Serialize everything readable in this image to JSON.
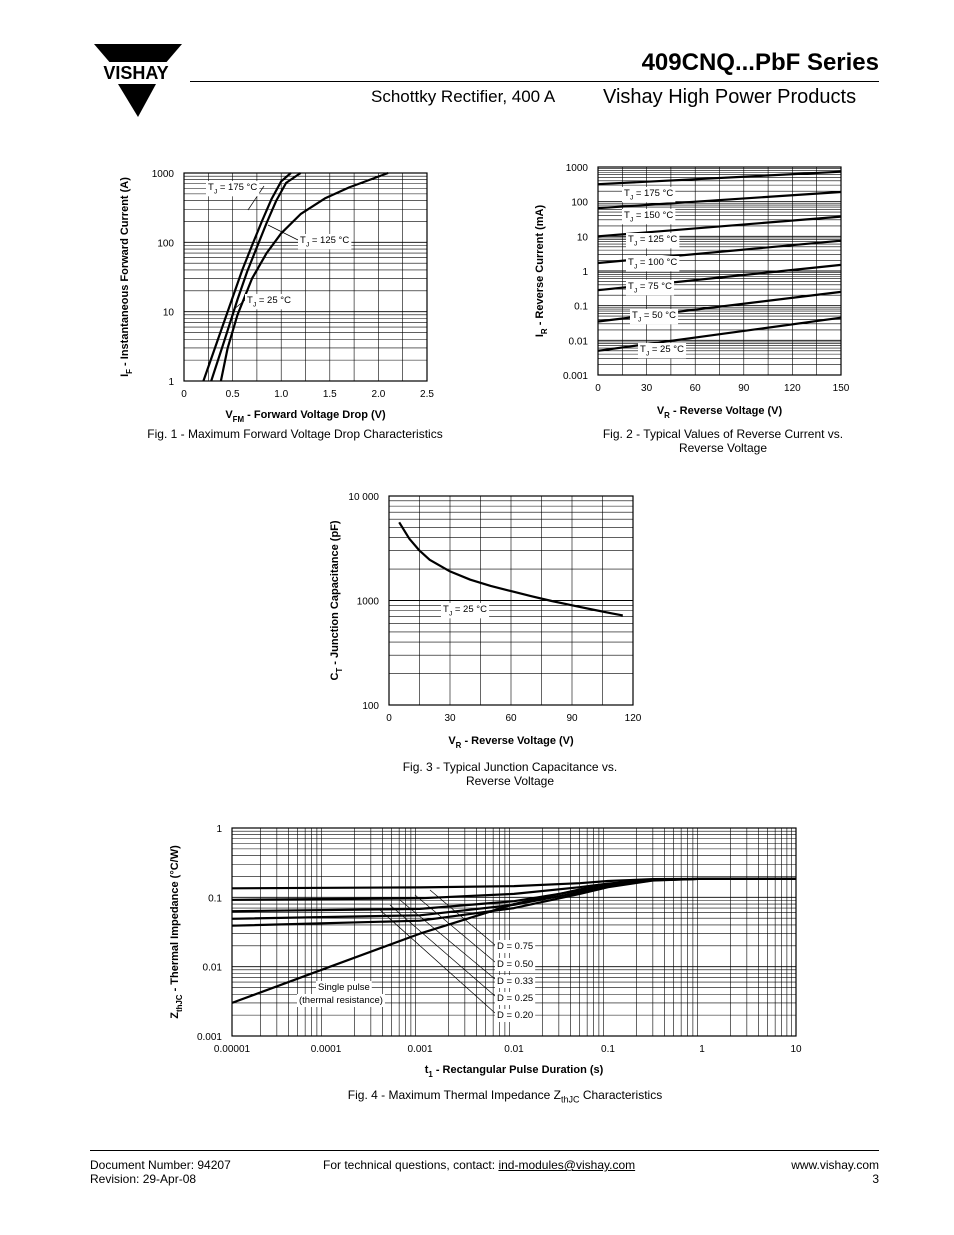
{
  "header": {
    "logo_text": "VISHAY",
    "title": "409CNQ...PbF Series",
    "subtitle": "Schottky Rectifier, 400 A",
    "brand": "Vishay High Power Products"
  },
  "figures": [
    {
      "caption": "Fig. 1 - Maximum Forward Voltage Drop Characteristics"
    },
    {
      "caption": "Fig. 2 - Typical Values of Reverse Current vs. Reverse Voltage"
    },
    {
      "caption": "Fig. 3 - Typical Junction Capacitance vs. Reverse Voltage"
    },
    {
      "caption_prefix": "Fig. 4 - Maximum Thermal Impedance Z",
      "caption_sub": "thJC",
      "caption_suffix": " Characteristics"
    }
  ],
  "footer": {
    "doc_number": "Document Number: 94207",
    "revision": "Revision: 29-Apr-08",
    "contact_prefix": "For technical questions, contact: ",
    "contact_email": "ind-modules@vishay.com",
    "website": "www.vishay.com",
    "page_number": "3"
  },
  "chart_data": [
    {
      "type": "line",
      "title": "Fig. 1 - Maximum Forward Voltage Drop Characteristics",
      "ylabel_main": "I",
      "ylabel_sub": "F",
      "ylabel_rest": " - Instantaneous Forward Current (A)",
      "xlabel_main": "V",
      "xlabel_sub": "FM",
      "xlabel_rest": " - Forward Voltage Drop (V)",
      "xlim": [
        0,
        2.5
      ],
      "ylim": [
        1,
        1000
      ],
      "yscale": "log",
      "xticks": [
        "0",
        "0.5",
        "1.0",
        "1.5",
        "2.0",
        "2.5"
      ],
      "yticks": [
        "1",
        "10",
        "100",
        "1000"
      ],
      "grid": true,
      "series": [
        {
          "name": "T_J = 175 °C",
          "points": [
            [
              0.2,
              1
            ],
            [
              0.35,
              4
            ],
            [
              0.5,
              16
            ],
            [
              0.6,
              40
            ],
            [
              0.7,
              90
            ],
            [
              0.8,
              200
            ],
            [
              0.9,
              420
            ],
            [
              1.0,
              760
            ],
            [
              1.1,
              1000
            ]
          ]
        },
        {
          "name": "T_J = 125 °C",
          "points": [
            [
              0.28,
              1
            ],
            [
              0.42,
              4
            ],
            [
              0.55,
              15
            ],
            [
              0.65,
              38
            ],
            [
              0.75,
              85
            ],
            [
              0.85,
              190
            ],
            [
              0.95,
              400
            ],
            [
              1.05,
              720
            ],
            [
              1.2,
              1000
            ]
          ]
        },
        {
          "name": "T_J = 25 °C",
          "points": [
            [
              0.38,
              1
            ],
            [
              0.45,
              3
            ],
            [
              0.55,
              9
            ],
            [
              0.7,
              30
            ],
            [
              0.85,
              70
            ],
            [
              1.0,
              135
            ],
            [
              1.2,
              255
            ],
            [
              1.45,
              430
            ],
            [
              1.7,
              620
            ],
            [
              2.1,
              1000
            ]
          ]
        }
      ],
      "annotations": [
        {
          "main": "T",
          "sub": "J",
          "rest": " = 175 °C"
        },
        {
          "main": "T",
          "sub": "J",
          "rest": " = 125 °C"
        },
        {
          "main": "T",
          "sub": "J",
          "rest": " = 25 °C"
        }
      ]
    },
    {
      "type": "line",
      "title": "Fig. 2 - Typical Values of Reverse Current vs. Reverse Voltage",
      "ylabel_main": "I",
      "ylabel_sub": "R",
      "ylabel_rest": " - Reverse Current (mA)",
      "xlabel_main": "V",
      "xlabel_sub": "R",
      "xlabel_rest": " - Reverse Voltage (V)",
      "xlim": [
        0,
        150
      ],
      "ylim": [
        0.001,
        1000
      ],
      "yscale": "log",
      "xticks": [
        "0",
        "30",
        "60",
        "90",
        "120",
        "150"
      ],
      "yticks": [
        "0.001",
        "0.01",
        "0.1",
        "1",
        "10",
        "100",
        "1000"
      ],
      "grid": true,
      "series": [
        {
          "name": "T_J = 175 °C",
          "points": [
            [
              0,
              320
            ],
            [
              150,
              730
            ]
          ]
        },
        {
          "name": "T_J = 150 °C",
          "points": [
            [
              0,
              65
            ],
            [
              150,
              190
            ]
          ]
        },
        {
          "name": "T_J = 125 °C",
          "points": [
            [
              0,
              10
            ],
            [
              150,
              37
            ]
          ]
        },
        {
          "name": "T_J = 100 °C",
          "points": [
            [
              0,
              1.7
            ],
            [
              150,
              7.5
            ]
          ]
        },
        {
          "name": "T_J = 75 °C",
          "points": [
            [
              0,
              0.28
            ],
            [
              150,
              1.5
            ]
          ]
        },
        {
          "name": "T_J = 50 °C",
          "points": [
            [
              0,
              0.035
            ],
            [
              150,
              0.25
            ]
          ]
        },
        {
          "name": "T_J = 25 °C",
          "points": [
            [
              0,
              0.005
            ],
            [
              150,
              0.045
            ]
          ]
        }
      ],
      "annotations": [
        {
          "main": "T",
          "sub": "J",
          "rest": " = 175 °C"
        },
        {
          "main": "T",
          "sub": "J",
          "rest": " = 150 °C"
        },
        {
          "main": "T",
          "sub": "J",
          "rest": " = 125 °C"
        },
        {
          "main": "T",
          "sub": "J",
          "rest": " = 100 °C"
        },
        {
          "main": "T",
          "sub": "J",
          "rest": " = 75 °C"
        },
        {
          "main": "T",
          "sub": "J",
          "rest": " = 50 °C"
        },
        {
          "main": "T",
          "sub": "J",
          "rest": " = 25 °C"
        }
      ]
    },
    {
      "type": "line",
      "title": "Fig. 3 - Typical Junction Capacitance vs. Reverse Voltage",
      "ylabel_main": "C",
      "ylabel_sub": "T",
      "ylabel_rest": " - Junction Capacitance (pF)",
      "xlabel_main": "V",
      "xlabel_sub": "R",
      "xlabel_rest": " - Reverse Voltage (V)",
      "xlim": [
        0,
        120
      ],
      "ylim": [
        100,
        10000
      ],
      "yscale": "log",
      "xticks": [
        "0",
        "30",
        "60",
        "90",
        "120"
      ],
      "yticks": [
        "100",
        "1000",
        "10 000"
      ],
      "grid": true,
      "series": [
        {
          "name": "T_J = 25 °C",
          "points": [
            [
              5,
              5600
            ],
            [
              10,
              3900
            ],
            [
              15,
              3000
            ],
            [
              20,
              2450
            ],
            [
              30,
              1900
            ],
            [
              40,
              1580
            ],
            [
              50,
              1380
            ],
            [
              60,
              1230
            ],
            [
              70,
              1100
            ],
            [
              80,
              990
            ],
            [
              90,
              900
            ],
            [
              100,
              820
            ],
            [
              110,
              750
            ],
            [
              115,
              720
            ]
          ]
        }
      ],
      "annotations": [
        {
          "main": "T",
          "sub": "J",
          "rest": " = 25 °C"
        }
      ]
    },
    {
      "type": "line",
      "title": "Fig. 4 - Maximum Thermal Impedance ZthJC Characteristics",
      "ylabel_main": "Z",
      "ylabel_sub": "thJC",
      "ylabel_rest": " - Thermal Impedance (°C/W)",
      "xlabel_main": "t",
      "xlabel_sub": "1",
      "xlabel_rest": " - Rectangular Pulse Duration (s)",
      "xlim": [
        1e-05,
        10
      ],
      "ylim": [
        0.001,
        1
      ],
      "xscale": "log",
      "yscale": "log",
      "xticks": [
        "0.00001",
        "0.0001",
        "0.001",
        "0.01",
        "0.1",
        "1",
        "10"
      ],
      "yticks": [
        "0.001",
        "0.01",
        "0.1",
        "1"
      ],
      "grid": true,
      "series": [
        {
          "name": "D = 0.75",
          "points": [
            [
              1e-05,
              0.135
            ],
            [
              0.001,
              0.139
            ],
            [
              0.01,
              0.145
            ],
            [
              0.05,
              0.16
            ],
            [
              0.1,
              0.172
            ],
            [
              0.3,
              0.183
            ],
            [
              1,
              0.185
            ],
            [
              10,
              0.185
            ]
          ]
        },
        {
          "name": "D = 0.50",
          "points": [
            [
              1e-05,
              0.092
            ],
            [
              0.001,
              0.097
            ],
            [
              0.01,
              0.112
            ],
            [
              0.05,
              0.14
            ],
            [
              0.1,
              0.158
            ],
            [
              0.3,
              0.18
            ],
            [
              1,
              0.185
            ],
            [
              10,
              0.185
            ]
          ]
        },
        {
          "name": "D = 0.33",
          "points": [
            [
              1e-05,
              0.063
            ],
            [
              0.001,
              0.068
            ],
            [
              0.01,
              0.088
            ],
            [
              0.05,
              0.125
            ],
            [
              0.1,
              0.148
            ],
            [
              0.3,
              0.178
            ],
            [
              1,
              0.185
            ],
            [
              10,
              0.185
            ]
          ]
        },
        {
          "name": "D = 0.25",
          "points": [
            [
              1e-05,
              0.049
            ],
            [
              0.001,
              0.055
            ],
            [
              0.01,
              0.078
            ],
            [
              0.05,
              0.118
            ],
            [
              0.1,
              0.143
            ],
            [
              0.3,
              0.176
            ],
            [
              1,
              0.185
            ],
            [
              10,
              0.185
            ]
          ]
        },
        {
          "name": "D = 0.20",
          "points": [
            [
              1e-05,
              0.039
            ],
            [
              0.001,
              0.046
            ],
            [
              0.01,
              0.07
            ],
            [
              0.05,
              0.112
            ],
            [
              0.1,
              0.14
            ],
            [
              0.3,
              0.175
            ],
            [
              1,
              0.185
            ],
            [
              10,
              0.185
            ]
          ]
        },
        {
          "name": "Single pulse (thermal resistance)",
          "points": [
            [
              1e-05,
              0.003
            ],
            [
              0.0001,
              0.0095
            ],
            [
              0.001,
              0.03
            ],
            [
              0.01,
              0.08
            ],
            [
              0.05,
              0.13
            ],
            [
              0.1,
              0.155
            ],
            [
              0.3,
              0.178
            ],
            [
              1,
              0.185
            ],
            [
              10,
              0.185
            ]
          ]
        }
      ],
      "annotations": [
        {
          "rest": "D = 0.75"
        },
        {
          "rest": "D = 0.50"
        },
        {
          "rest": "D = 0.33"
        },
        {
          "rest": "D = 0.25"
        },
        {
          "rest": "D = 0.20"
        },
        {
          "rest": "Single pulse"
        },
        {
          "rest": "(thermal resistance)"
        }
      ]
    }
  ]
}
